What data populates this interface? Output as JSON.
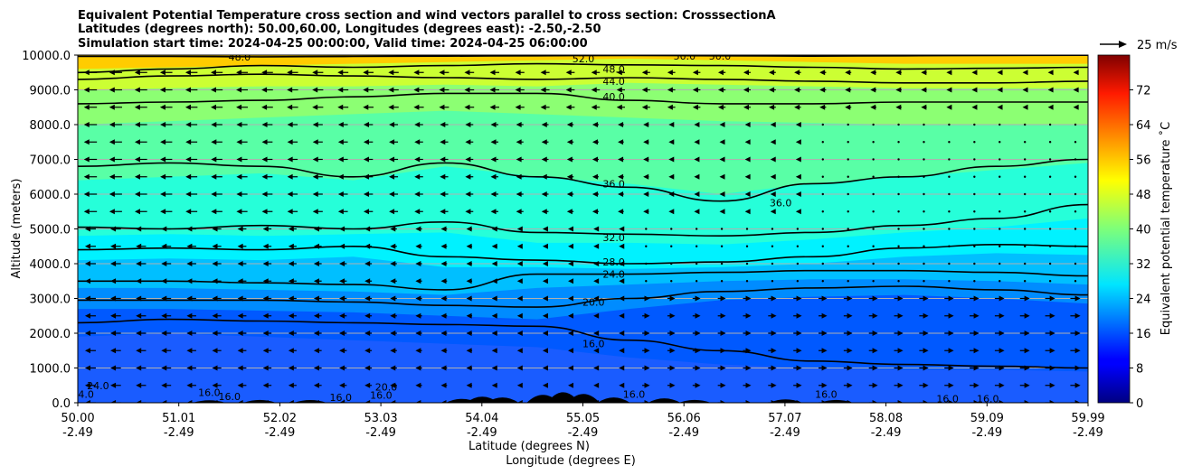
{
  "chart_data": {
    "type": "contour",
    "title_lines": [
      "Equivalent Potential Temperature cross section and wind vectors parallel to cross section: CrosssectionA",
      "Latitudes (degrees north): 50.00,60.00, Longitudes (degrees east): -2.50,-2.50",
      "Simulation start time: 2024-04-25 00:00:00, Valid time: 2024-04-25 06:00:00"
    ],
    "xlabel_lines": [
      "Latitude (degrees N)",
      "Longitude (degrees E)"
    ],
    "ylabel": "Altitude (meters)",
    "x_tick_lat": [
      "50.00",
      "51.01",
      "52.02",
      "53.03",
      "54.04",
      "55.05",
      "56.06",
      "57.07",
      "58.08",
      "59.09",
      "59.99"
    ],
    "x_tick_lon": [
      "-2.49",
      "-2.49",
      "-2.49",
      "-2.49",
      "-2.49",
      "-2.49",
      "-2.49",
      "-2.49",
      "-2.49",
      "-2.49",
      "-2.49"
    ],
    "y_ticks": [
      "0.0",
      "1000.0",
      "2000.0",
      "3000.0",
      "4000.0",
      "5000.0",
      "6000.0",
      "7000.0",
      "8000.0",
      "9000.0",
      "10000.0"
    ],
    "ylim": [
      0,
      10000
    ],
    "xlim": [
      50.0,
      59.99
    ],
    "grid": "horizontal",
    "colorbar": {
      "label": "Equivalent potential temperature ˚C",
      "range": [
        0,
        80
      ],
      "ticks": [
        "0",
        "8",
        "16",
        "24",
        "32",
        "40",
        "48",
        "56",
        "64",
        "72"
      ],
      "colormap": "jet"
    },
    "quiver_key": "25 m/s",
    "contour_lines": [
      {
        "level": 52.0,
        "label": "52.0",
        "y": [
          9960,
          9960,
          9950,
          9960,
          9970,
          9980,
          9990,
          9980,
          9970,
          9980,
          9990,
          9995
        ]
      },
      {
        "level": 48.0,
        "label": "48.0",
        "y": [
          9500,
          9600,
          9700,
          9650,
          9700,
          9750,
          9720,
          9700,
          9650,
          9600,
          9620,
          9650
        ]
      },
      {
        "level": 44.0,
        "label": "44.0",
        "y": [
          9300,
          9400,
          9450,
          9400,
          9350,
          9300,
          9350,
          9300,
          9250,
          9200,
          9200,
          9250
        ]
      },
      {
        "level": 40.0,
        "label": "40.0",
        "y": [
          8600,
          8650,
          8700,
          8800,
          8900,
          8900,
          8700,
          8600,
          8600,
          8650,
          8650,
          8650
        ]
      },
      {
        "level": 36.0,
        "label": "36.0",
        "y": [
          6800,
          6900,
          6800,
          6500,
          6900,
          6500,
          6200,
          5800,
          6300,
          6500,
          6800,
          7000
        ]
      },
      {
        "level": 32.0,
        "label": "32.0",
        "y": [
          5050,
          5000,
          5100,
          5000,
          5200,
          4900,
          4850,
          4800,
          4900,
          5100,
          5300,
          5700
        ]
      },
      {
        "level": 28.0,
        "label": "28.0",
        "y": [
          4400,
          4450,
          4400,
          4500,
          4200,
          4100,
          4000,
          4050,
          4200,
          4450,
          4550,
          4500
        ]
      },
      {
        "level": 24.0,
        "label": "24.0",
        "y": [
          3500,
          3500,
          3450,
          3400,
          3250,
          3700,
          3700,
          3750,
          3800,
          3800,
          3750,
          3650
        ]
      },
      {
        "level": 20.0,
        "label": "20.0",
        "y": [
          2950,
          2950,
          2950,
          2900,
          2800,
          2750,
          3000,
          3200,
          3300,
          3350,
          3250,
          3100
        ]
      },
      {
        "level": 16.0,
        "label": "16.0",
        "y": [
          2300,
          2400,
          2350,
          2300,
          2250,
          2200,
          1800,
          1500,
          1200,
          1100,
          1050,
          1000
        ]
      }
    ],
    "filled_bands": [
      {
        "value": 54,
        "y": [
          9600,
          9650,
          9700,
          9750,
          9800,
          9850,
          9900,
          9850,
          9800,
          9750,
          9750,
          9750
        ]
      },
      {
        "value": 46,
        "y": [
          9000,
          9050,
          9100,
          9100,
          9150,
          9100,
          9200,
          9150,
          9100,
          9050,
          9050,
          9050
        ]
      },
      {
        "value": 41,
        "y": [
          8000,
          8100,
          8200,
          8300,
          8400,
          8300,
          8200,
          8100,
          8050,
          8000,
          8000,
          8000
        ]
      },
      {
        "value": 37,
        "y": [
          6400,
          6500,
          6600,
          6400,
          6800,
          6500,
          6300,
          6000,
          6300,
          6500,
          6700,
          6900
        ]
      },
      {
        "value": 33,
        "y": [
          4800,
          4850,
          4800,
          4850,
          4900,
          4600,
          4600,
          4550,
          4700,
          4900,
          5050,
          5300
        ]
      },
      {
        "value": 29,
        "y": [
          4100,
          4150,
          4100,
          4200,
          3900,
          3900,
          3850,
          3900,
          4000,
          4200,
          4300,
          4250
        ]
      },
      {
        "value": 25,
        "y": [
          3300,
          3300,
          3250,
          3200,
          3100,
          3300,
          3400,
          3500,
          3550,
          3550,
          3500,
          3400
        ]
      },
      {
        "value": 21,
        "y": [
          2700,
          2700,
          2650,
          2600,
          2500,
          2400,
          2700,
          2950,
          3050,
          3100,
          3000,
          2850
        ]
      },
      {
        "value": 17,
        "y": [
          1900,
          2000,
          1900,
          1800,
          1700,
          1600,
          1300,
          1100,
          1000,
          950,
          950,
          900
        ]
      }
    ],
    "wind": {
      "x_columns": 40,
      "y_levels": [
        0,
        500,
        1000,
        1500,
        2000,
        2500,
        3000,
        3500,
        4000,
        4500,
        5000,
        5500,
        6000,
        6500,
        7000,
        7500,
        8000,
        8500,
        9000,
        9500
      ],
      "note": "westward winds north of ~55N aloft decreasing; eastward winds in lower levels north of 56N"
    },
    "terrain": [
      {
        "lat": 51.3,
        "height": 40
      },
      {
        "lat": 51.8,
        "height": 60
      },
      {
        "lat": 52.3,
        "height": 50
      },
      {
        "lat": 53.8,
        "height": 120
      },
      {
        "lat": 54.0,
        "height": 250
      },
      {
        "lat": 54.2,
        "height": 200
      },
      {
        "lat": 54.6,
        "height": 350
      },
      {
        "lat": 54.8,
        "height": 500
      },
      {
        "lat": 55.0,
        "height": 400
      },
      {
        "lat": 55.3,
        "height": 200
      },
      {
        "lat": 55.8,
        "height": 150
      },
      {
        "lat": 56.1,
        "height": 60
      },
      {
        "lat": 57.0,
        "height": 90
      },
      {
        "lat": 57.5,
        "height": 60
      }
    ],
    "inline_labels": [
      {
        "text": "48.0",
        "lat": 51.6,
        "alt": 9950
      },
      {
        "text": "50.0",
        "lat": 56.0,
        "alt": 9980
      },
      {
        "text": "50.0",
        "lat": 56.35,
        "alt": 9980
      },
      {
        "text": "52.0",
        "lat": 55.0,
        "alt": 9900
      },
      {
        "text": "48.0",
        "lat": 55.3,
        "alt": 9600
      },
      {
        "text": "44.0",
        "lat": 55.3,
        "alt": 9250
      },
      {
        "text": "40.0",
        "lat": 55.3,
        "alt": 8800
      },
      {
        "text": "36.0",
        "lat": 55.3,
        "alt": 6300
      },
      {
        "text": "36.0",
        "lat": 56.95,
        "alt": 5750
      },
      {
        "text": "32.0",
        "lat": 55.3,
        "alt": 4750
      },
      {
        "text": "28.0",
        "lat": 55.3,
        "alt": 4050
      },
      {
        "text": "24.0",
        "lat": 55.3,
        "alt": 3700
      },
      {
        "text": "20.0",
        "lat": 55.1,
        "alt": 2900
      },
      {
        "text": "16.0",
        "lat": 55.1,
        "alt": 1700
      },
      {
        "text": "24.0",
        "lat": 50.2,
        "alt": 500
      },
      {
        "text": "24.0",
        "lat": 50.05,
        "alt": 250
      },
      {
        "text": "16.0",
        "lat": 51.3,
        "alt": 300
      },
      {
        "text": "16.0",
        "lat": 51.5,
        "alt": 180
      },
      {
        "text": "16.0",
        "lat": 52.6,
        "alt": 150
      },
      {
        "text": "16.0",
        "lat": 53.0,
        "alt": 220
      },
      {
        "text": "20.0",
        "lat": 53.05,
        "alt": 450
      },
      {
        "text": "16.0",
        "lat": 55.5,
        "alt": 250
      },
      {
        "text": "16.0",
        "lat": 57.4,
        "alt": 250
      },
      {
        "text": "16.0",
        "lat": 58.6,
        "alt": 120
      },
      {
        "text": "16.0",
        "lat": 59.0,
        "alt": 120
      }
    ]
  }
}
